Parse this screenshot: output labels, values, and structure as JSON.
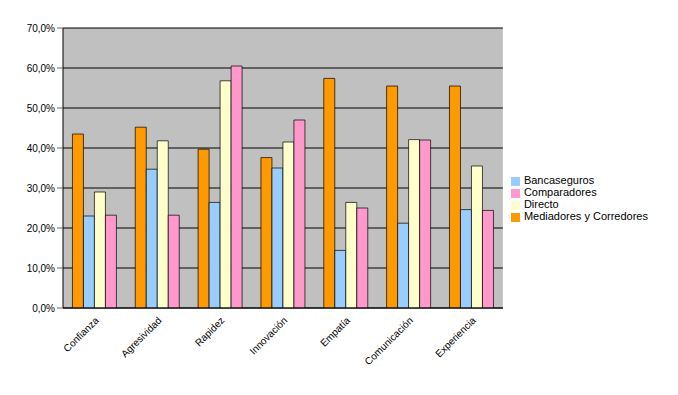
{
  "chart_data": {
    "type": "bar",
    "categories": [
      "Confianza",
      "Agresividad",
      "Rapidez",
      "Innovación",
      "Empatía",
      "Comunicación",
      "Experiencia"
    ],
    "series": [
      {
        "name": "Mediadores y Corredores",
        "color": "#ff9900",
        "values": [
          43.5,
          45.2,
          39.7,
          37.6,
          57.4,
          55.5,
          55.5
        ]
      },
      {
        "name": "Bancaseguros",
        "color": "#99ccff",
        "values": [
          23.0,
          34.7,
          26.4,
          35.0,
          14.4,
          21.2,
          24.6
        ]
      },
      {
        "name": "Directo",
        "color": "#ffffcc",
        "values": [
          29.0,
          41.8,
          56.8,
          41.5,
          26.4,
          42.1,
          35.5
        ]
      },
      {
        "name": "Comparadores",
        "color": "#ff99cc",
        "values": [
          23.2,
          23.2,
          60.5,
          47.0,
          25.0,
          42.0,
          24.4
        ]
      }
    ],
    "ylim": [
      0,
      70
    ],
    "yticks": [
      {
        "value": 0,
        "label": "0,0%"
      },
      {
        "value": 10,
        "label": "10,0%"
      },
      {
        "value": 20,
        "label": "20,0%"
      },
      {
        "value": 30,
        "label": "30,0%"
      },
      {
        "value": 40,
        "label": "40,0%"
      },
      {
        "value": 50,
        "label": "50,0%"
      },
      {
        "value": 60,
        "label": "60,0%"
      },
      {
        "value": 70,
        "label": "70,0%"
      }
    ],
    "grid": true,
    "legend": "right"
  }
}
